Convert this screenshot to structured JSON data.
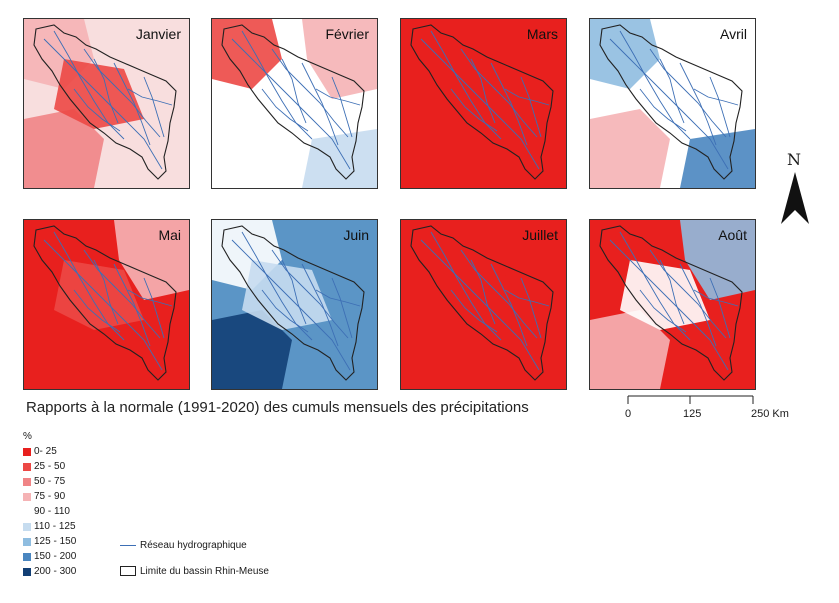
{
  "panels": [
    {
      "month": "Janvier",
      "bg": "#f8dede",
      "blobs": [
        {
          "cls": 3,
          "w": "white"
        },
        {
          "cls": 2
        },
        {
          "cls": 1
        }
      ]
    },
    {
      "month": "Février",
      "bg": "#ffffff",
      "blobs": [
        {
          "cls": 3
        },
        {
          "cls": 5
        },
        {
          "cls": 1
        }
      ]
    },
    {
      "month": "Mars",
      "bg": "#e8201e",
      "blobs": [
        {
          "cls": 0
        }
      ]
    },
    {
      "month": "Avril",
      "bg": "#ffffff",
      "blobs": [
        {
          "cls": 7
        },
        {
          "cls": 6
        },
        {
          "cls": 3
        }
      ]
    },
    {
      "month": "Mai",
      "bg": "#e8201e",
      "blobs": [
        {
          "cls": 1
        },
        {
          "cls": 3
        }
      ]
    },
    {
      "month": "Juin",
      "bg": "#5b95c6",
      "blobs": [
        {
          "cls": 4
        },
        {
          "cls": 8
        },
        {
          "cls": 5
        }
      ]
    },
    {
      "month": "Juillet",
      "bg": "#e8201e",
      "blobs": [
        {
          "cls": 0
        }
      ]
    },
    {
      "month": "Août",
      "bg": "#e8201e",
      "blobs": [
        {
          "cls": 3
        },
        {
          "cls": 4
        },
        {
          "cls": 6
        }
      ]
    }
  ],
  "title": "Rapports à la normale (1991-2020) des cumuls mensuels des précipitations",
  "north_label": "N",
  "scale": {
    "labels": [
      "0",
      "125",
      "250 Km"
    ]
  },
  "legend": {
    "unit": "%",
    "classes": [
      {
        "label": "0- 25",
        "color": "#e8201e"
      },
      {
        "label": "25 - 50",
        "color": "#ec4845"
      },
      {
        "label": "50 - 75",
        "color": "#f08486"
      },
      {
        "label": "75 - 90",
        "color": "#f5b3b5"
      },
      {
        "label": "90 - 110",
        "color": "#ffffff"
      },
      {
        "label": "110 - 125",
        "color": "#c6dcef"
      },
      {
        "label": "125 - 150",
        "color": "#8fbde0"
      },
      {
        "label": "150 - 200",
        "color": "#4a86c0"
      },
      {
        "label": "200 - 300",
        "color": "#123f75"
      }
    ],
    "hydro": "Réseau hydrographique",
    "basin": "Limite du bassin Rhin-Meuse"
  },
  "colors": {
    "river": "#3d6fb5",
    "basin_outline": "#222222"
  }
}
